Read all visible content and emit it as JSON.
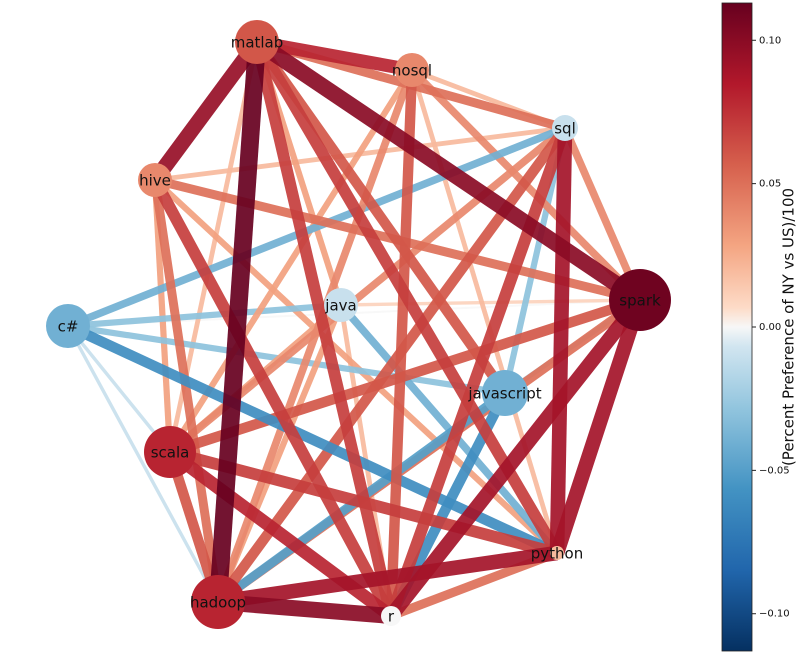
{
  "chart_data": {
    "type": "network",
    "colormap": "RdBu_r",
    "nodes": [
      {
        "label": "matlab",
        "value": 0.06
      },
      {
        "label": "nosql",
        "value": 0.04
      },
      {
        "label": "sql",
        "value": -0.01
      },
      {
        "label": "hive",
        "value": 0.04
      },
      {
        "label": "c#",
        "value": -0.04
      },
      {
        "label": "java",
        "value": -0.01
      },
      {
        "label": "spark",
        "value": 0.11
      },
      {
        "label": "javascript",
        "value": -0.04
      },
      {
        "label": "scala",
        "value": 0.08
      },
      {
        "label": "python",
        "value": 0.02
      },
      {
        "label": "hadoop",
        "value": 0.08
      },
      {
        "label": "r",
        "value": 0.0
      }
    ],
    "edges": [
      {
        "source": 0,
        "target": 10,
        "value": 0.113
      },
      {
        "source": 0,
        "target": 3,
        "value": 0.095
      },
      {
        "source": 0,
        "target": 1,
        "value": 0.08
      },
      {
        "source": 0,
        "target": 6,
        "value": 0.1
      },
      {
        "source": 0,
        "target": 2,
        "value": 0.05
      },
      {
        "source": 0,
        "target": 11,
        "value": 0.07
      },
      {
        "source": 0,
        "target": 9,
        "value": 0.07
      },
      {
        "source": 0,
        "target": 8,
        "value": 0.02
      },
      {
        "source": 0,
        "target": 5,
        "value": 0.03
      },
      {
        "source": 0,
        "target": 7,
        "value": 0.06
      },
      {
        "source": 6,
        "target": 9,
        "value": 0.09
      },
      {
        "source": 6,
        "target": 11,
        "value": 0.09
      },
      {
        "source": 10,
        "target": 9,
        "value": 0.09
      },
      {
        "source": 10,
        "target": 11,
        "value": 0.1
      },
      {
        "source": 6,
        "target": 8,
        "value": 0.06
      },
      {
        "source": 6,
        "target": 3,
        "value": 0.05
      },
      {
        "source": 6,
        "target": 1,
        "value": 0.04
      },
      {
        "source": 6,
        "target": 2,
        "value": 0.04
      },
      {
        "source": 6,
        "target": 5,
        "value": 0.01
      },
      {
        "source": 6,
        "target": 4,
        "value": 0.0
      },
      {
        "source": 6,
        "target": 7,
        "value": -0.02
      },
      {
        "source": 6,
        "target": 10,
        "value": 0.05
      },
      {
        "source": 2,
        "target": 9,
        "value": 0.09
      },
      {
        "source": 2,
        "target": 11,
        "value": 0.07
      },
      {
        "source": 2,
        "target": 8,
        "value": 0.04
      },
      {
        "source": 2,
        "target": 4,
        "value": -0.04
      },
      {
        "source": 2,
        "target": 10,
        "value": 0.06
      },
      {
        "source": 2,
        "target": 7,
        "value": -0.03
      },
      {
        "source": 1,
        "target": 2,
        "value": 0.02
      },
      {
        "source": 3,
        "target": 8,
        "value": 0.03
      },
      {
        "source": 3,
        "target": 10,
        "value": 0.05
      },
      {
        "source": 3,
        "target": 11,
        "value": 0.07
      },
      {
        "source": 3,
        "target": 9,
        "value": 0.03
      },
      {
        "source": 3,
        "target": 2,
        "value": 0.02
      },
      {
        "source": 4,
        "target": 9,
        "value": -0.06
      },
      {
        "source": 4,
        "target": 7,
        "value": -0.03
      },
      {
        "source": 4,
        "target": 5,
        "value": -0.03
      },
      {
        "source": 4,
        "target": 10,
        "value": -0.01
      },
      {
        "source": 4,
        "target": 8,
        "value": -0.01
      },
      {
        "source": 8,
        "target": 9,
        "value": 0.07
      },
      {
        "source": 8,
        "target": 11,
        "value": 0.08
      },
      {
        "source": 8,
        "target": 10,
        "value": 0.06
      },
      {
        "source": 8,
        "target": 1,
        "value": 0.03
      },
      {
        "source": 8,
        "target": 5,
        "value": 0.03
      },
      {
        "source": 7,
        "target": 11,
        "value": -0.06
      },
      {
        "source": 7,
        "target": 10,
        "value": -0.05
      },
      {
        "source": 5,
        "target": 9,
        "value": -0.04
      },
      {
        "source": 5,
        "target": 11,
        "value": 0.02
      },
      {
        "source": 5,
        "target": 10,
        "value": 0.03
      },
      {
        "source": 1,
        "target": 11,
        "value": 0.06
      },
      {
        "source": 1,
        "target": 10,
        "value": 0.04
      },
      {
        "source": 1,
        "target": 9,
        "value": 0.02
      },
      {
        "source": 11,
        "target": 9,
        "value": 0.05
      }
    ],
    "colorbar": {
      "label": "(Percent Preference of NY vs US)/100",
      "ylim": [
        -0.113,
        0.113
      ],
      "yticks": [
        {
          "value": 0.1,
          "label": "0.10"
        },
        {
          "value": 0.05,
          "label": "0.05"
        },
        {
          "value": 0,
          "label": "0.00"
        },
        {
          "value": -0.05,
          "label": "−0.05"
        },
        {
          "value": -0.1,
          "label": "−0.10"
        }
      ]
    }
  }
}
